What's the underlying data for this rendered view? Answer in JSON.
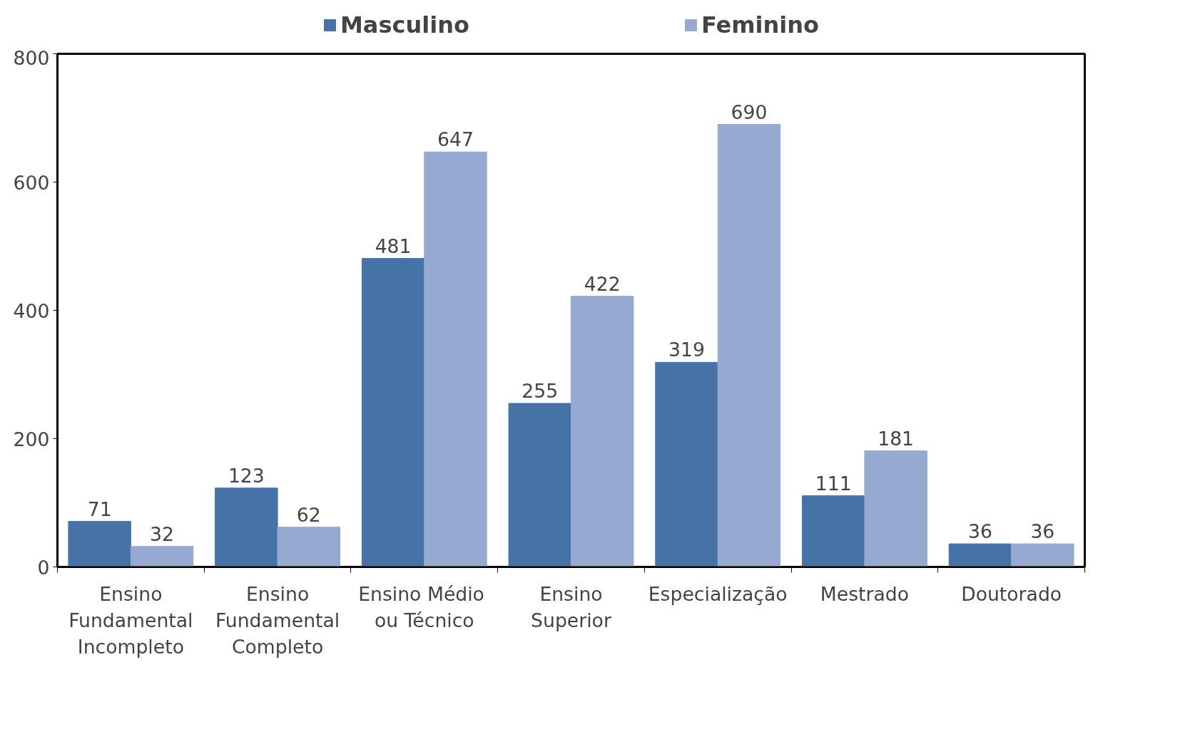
{
  "chart_data": {
    "type": "bar",
    "categories": [
      "Ensino\nFundamental\nIncompleto",
      "Ensino\nFundamental\nCompleto",
      "Ensino  Médio\nou Técnico",
      "Ensino\nSuperior",
      "Especialização",
      "Mestrado",
      "Doutorado"
    ],
    "series": [
      {
        "name": "Masculino",
        "color": "#4573a7",
        "values": [
          71,
          123,
          481,
          255,
          319,
          111,
          36
        ]
      },
      {
        "name": "Feminino",
        "color": "#95a9d1",
        "values": [
          32,
          62,
          647,
          422,
          690,
          181,
          36
        ]
      }
    ],
    "ylim": [
      0,
      800
    ],
    "yticks": [
      0,
      200,
      400,
      600,
      800
    ],
    "grid": false,
    "legend": "top",
    "data_labels": true
  }
}
